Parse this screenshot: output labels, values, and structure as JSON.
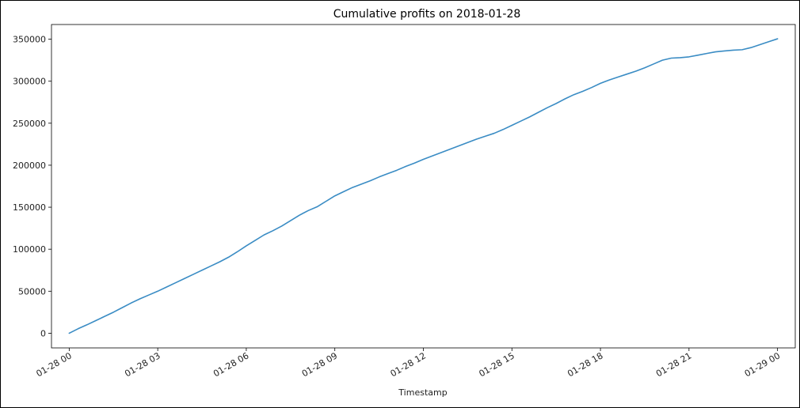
{
  "chart_data": {
    "type": "line",
    "title": "Cumulative profits on 2018-01-28",
    "xlabel": "Timestamp",
    "ylabel": "",
    "x_tick_labels": [
      "01-28 00",
      "01-28 03",
      "01-28 06",
      "01-28 09",
      "01-28 12",
      "01-28 15",
      "01-28 18",
      "01-28 21",
      "01-29 00"
    ],
    "y_tick_labels": [
      "0",
      "50000",
      "100000",
      "150000",
      "200000",
      "250000",
      "300000",
      "350000"
    ],
    "y_ticks": [
      0,
      50000,
      100000,
      150000,
      200000,
      250000,
      300000,
      350000
    ],
    "xlim_hours": [
      -0.6,
      24.6
    ],
    "ylim": [
      -17500,
      367500
    ],
    "grid": false,
    "line_color": "#3a8cc4",
    "series": [
      {
        "x_hours": [
          0,
          0.3,
          0.6,
          0.9,
          1.2,
          1.5,
          1.8,
          2.1,
          2.4,
          2.7,
          3.0,
          3.3,
          3.6,
          3.9,
          4.2,
          4.5,
          4.8,
          5.1,
          5.4,
          5.7,
          6.0,
          6.3,
          6.6,
          6.9,
          7.2,
          7.5,
          7.8,
          8.1,
          8.4,
          8.7,
          9.0,
          9.3,
          9.6,
          9.9,
          10.2,
          10.5,
          10.8,
          11.1,
          11.4,
          11.7,
          12.0,
          12.3,
          12.6,
          12.9,
          13.2,
          13.5,
          13.8,
          14.1,
          14.4,
          14.7,
          15.0,
          15.3,
          15.6,
          15.9,
          16.2,
          16.5,
          16.8,
          17.1,
          17.4,
          17.7,
          18.0,
          18.3,
          18.6,
          18.9,
          19.2,
          19.5,
          19.8,
          20.1,
          20.4,
          20.7,
          21.0,
          21.3,
          21.6,
          21.9,
          22.2,
          22.5,
          22.8,
          23.1,
          23.4,
          23.7,
          24.0
        ],
        "values": [
          0,
          5300,
          10000,
          15000,
          20000,
          25000,
          30500,
          36000,
          41000,
          45500,
          50000,
          55000,
          60000,
          65000,
          70000,
          75000,
          80000,
          85000,
          90500,
          97000,
          104000,
          110500,
          117000,
          122000,
          127500,
          134000,
          140500,
          146000,
          150500,
          157000,
          163500,
          168500,
          173500,
          177500,
          181500,
          186000,
          190000,
          194000,
          198500,
          202500,
          207000,
          211000,
          215000,
          219000,
          223000,
          227000,
          231000,
          234500,
          238000,
          242500,
          247500,
          252500,
          257500,
          263000,
          268500,
          273500,
          279000,
          284000,
          288000,
          292500,
          297500,
          301500,
          305000,
          308500,
          312000,
          316000,
          320500,
          325000,
          327500,
          328000,
          329000,
          331000,
          333000,
          335000,
          336000,
          337000,
          337500,
          340000,
          343500,
          347000,
          350500
        ]
      }
    ]
  }
}
